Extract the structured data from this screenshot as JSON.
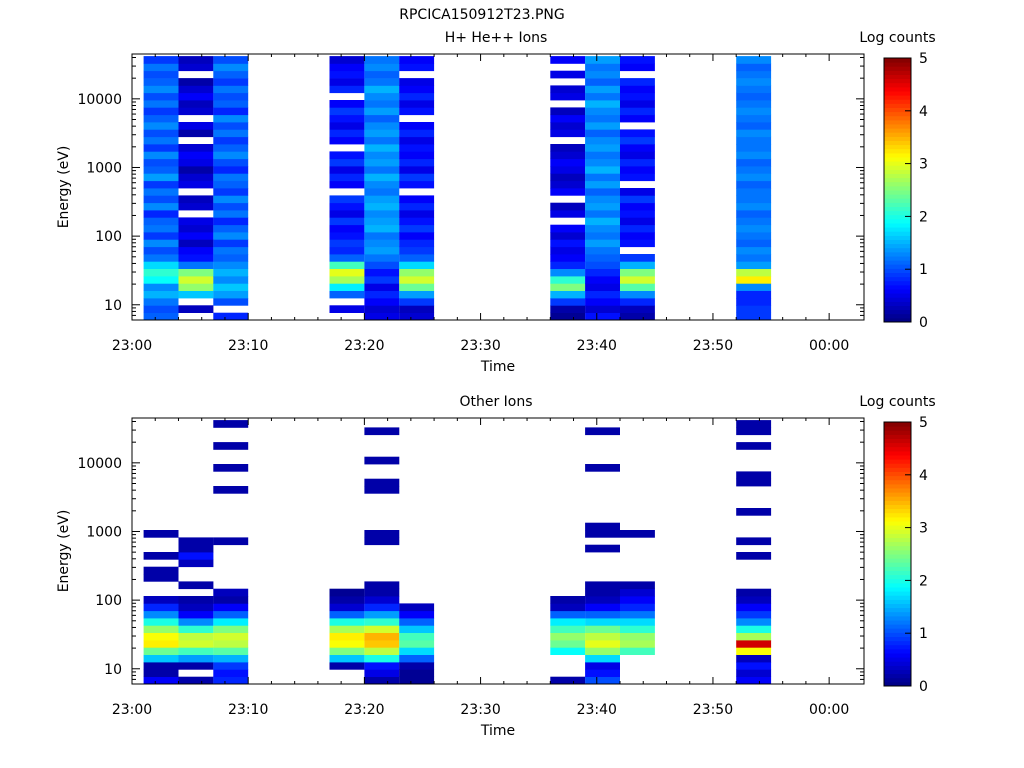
{
  "figure_title": "RPCICA150912T23.PNG",
  "chart_data": [
    {
      "type": "heatmap",
      "title": "H+ He++ Ions",
      "xlabel": "Time",
      "ylabel": "Energy (eV)",
      "yscale": "log",
      "ylim_eV": [
        6,
        45000
      ],
      "xlim_minutes_after_2300": [
        0,
        63
      ],
      "x_tick_labels": [
        "23:00",
        "23:10",
        "23:20",
        "23:30",
        "23:40",
        "23:50",
        "00:00"
      ],
      "y_tick_labels": [
        "10",
        "100",
        "1000",
        "10000"
      ],
      "colorbar_label": "Log counts",
      "colorbar_range": [
        0,
        5
      ],
      "colorbar_tick_labels": [
        "0",
        "1",
        "2",
        "3",
        "4",
        "5"
      ],
      "grid": false,
      "sweeps": [
        {
          "start": "23:01",
          "end": "23:04",
          "low_eV": 6,
          "high_eV": 42000,
          "levels": [
            1.1,
            1.0,
            1.2,
            1.5,
            1.3,
            1.9,
            2.1,
            1.7,
            1.2,
            1.0,
            1.3,
            0.9,
            1.2,
            1.1,
            0.8,
            1.3,
            1.0,
            1.2,
            0.9,
            1.4,
            1.1,
            1.0,
            1.3,
            0.9,
            1.2,
            1.0,
            1.3,
            1.1,
            0.9,
            1.2,
            1.0,
            1.3,
            1.1,
            1.0,
            1.2,
            0.9
          ]
        },
        {
          "start": "23:04",
          "end": "23:07",
          "low_eV": 6,
          "high_eV": 42000,
          "levels": [
            -1,
            0.3,
            -1,
            1.6,
            2.6,
            2.9,
            2.5,
            1.2,
            0.7,
            0.6,
            0.3,
            0.6,
            0.4,
            0.5,
            -1,
            0.4,
            0.3,
            -1,
            0.5,
            0.4,
            0.2,
            0.5,
            0.6,
            0.4,
            -1,
            0.2,
            0.5,
            -1,
            0.4,
            0.3,
            0.6,
            0.4,
            0.2,
            -1,
            0.4,
            0.3
          ]
        },
        {
          "start": "23:07",
          "end": "23:10",
          "low_eV": 6,
          "high_eV": 42000,
          "levels": [
            0.8,
            -1,
            1.0,
            1.4,
            1.6,
            1.3,
            1.5,
            1.3,
            1.1,
            1.2,
            0.9,
            1.3,
            1.1,
            0.8,
            1.2,
            1.0,
            1.3,
            0.9,
            1.1,
            1.2,
            0.8,
            1.0,
            1.3,
            1.1,
            0.9,
            1.2,
            1.0,
            1.3,
            0.8,
            1.1,
            1.0,
            1.2,
            0.9,
            1.1,
            1.3,
            1.0
          ]
        },
        {
          "start": "23:17",
          "end": "23:20",
          "low_eV": 6,
          "high_eV": 42000,
          "levels": [
            -1,
            0.5,
            -1,
            1.1,
            1.8,
            2.7,
            3.0,
            2.2,
            1.1,
            0.8,
            0.9,
            0.7,
            0.6,
            0.9,
            0.5,
            0.7,
            0.9,
            -1,
            0.6,
            0.8,
            0.5,
            0.9,
            0.7,
            -1,
            0.6,
            0.8,
            0.5,
            0.7,
            0.9,
            0.6,
            -1,
            0.8,
            0.5,
            0.7,
            0.6,
            0.4
          ]
        },
        {
          "start": "23:20",
          "end": "23:23",
          "low_eV": 6,
          "high_eV": 42000,
          "levels": [
            0.5,
            0.4,
            0.6,
            0.8,
            0.5,
            0.9,
            0.7,
            1.0,
            1.2,
            1.4,
            1.3,
            1.2,
            1.5,
            1.4,
            1.3,
            1.5,
            1.4,
            1.2,
            1.3,
            1.5,
            1.2,
            1.4,
            1.3,
            1.5,
            1.2,
            1.4,
            1.3,
            1.1,
            1.4,
            1.2,
            1.3,
            1.5,
            1.2,
            1.1,
            1.3,
            1.2
          ]
        },
        {
          "start": "23:23",
          "end": "23:26",
          "low_eV": 6,
          "high_eV": 42000,
          "levels": [
            0.4,
            0.3,
            0.9,
            1.4,
            2.4,
            2.9,
            2.6,
            1.7,
            1.1,
            0.9,
            0.8,
            0.6,
            0.9,
            0.7,
            0.5,
            0.8,
            0.6,
            -1,
            0.7,
            0.9,
            0.5,
            0.8,
            0.6,
            0.7,
            0.5,
            0.8,
            0.6,
            -1,
            0.7,
            0.5,
            0.8,
            0.6,
            0.5,
            -1,
            0.7,
            0.6
          ]
        },
        {
          "start": "23:36",
          "end": "23:39",
          "low_eV": 6,
          "high_eV": 42000,
          "levels": [
            0.1,
            0.2,
            0.9,
            1.5,
            2.5,
            2.1,
            1.3,
            0.8,
            0.6,
            0.5,
            0.7,
            0.4,
            0.6,
            -1,
            0.5,
            0.3,
            -1,
            0.6,
            0.4,
            0.3,
            0.5,
            0.6,
            0.4,
            0.3,
            -1,
            0.5,
            0.4,
            0.6,
            0.3,
            -1,
            0.5,
            0.4,
            -1,
            0.5,
            -1,
            0.6
          ]
        },
        {
          "start": "23:39",
          "end": "23:42",
          "low_eV": 6,
          "high_eV": 42000,
          "levels": [
            0.7,
            0.4,
            0.6,
            0.8,
            0.5,
            0.6,
            0.8,
            1.0,
            1.1,
            1.2,
            1.4,
            1.2,
            1.3,
            1.5,
            1.2,
            1.4,
            1.3,
            1.1,
            1.4,
            1.2,
            1.5,
            1.3,
            1.2,
            1.4,
            1.3,
            1.1,
            1.4,
            1.2,
            1.3,
            1.5,
            1.2,
            1.4,
            1.1,
            1.3,
            1.2,
            1.4
          ]
        },
        {
          "start": "23:42",
          "end": "23:45",
          "low_eV": 6,
          "high_eV": 42000,
          "levels": [
            0.2,
            0.3,
            0.8,
            1.3,
            2.3,
            2.9,
            2.5,
            1.5,
            0.9,
            -1,
            0.7,
            0.6,
            0.8,
            0.5,
            0.7,
            0.6,
            0.9,
            0.5,
            -1,
            0.7,
            0.6,
            0.8,
            0.5,
            0.6,
            0.9,
            0.7,
            -1,
            0.6,
            0.8,
            0.5,
            0.7,
            0.6,
            0.8,
            -1,
            0.6,
            0.7
          ]
        },
        {
          "start": "23:52",
          "end": "23:55",
          "low_eV": 6,
          "high_eV": 42000,
          "levels": [
            0.9,
            0.9,
            0.8,
            0.8,
            1.3,
            3.2,
            2.8,
            1.4,
            1.2,
            1.3,
            1.1,
            1.2,
            1.3,
            1.2,
            1.1,
            1.3,
            1.2,
            1.2,
            1.1,
            1.3,
            1.2,
            1.1,
            1.3,
            1.2,
            1.2,
            1.3,
            1.1,
            1.2,
            1.3,
            1.2,
            1.1,
            1.2,
            1.3,
            1.2,
            1.1,
            1.3
          ]
        }
      ]
    },
    {
      "type": "heatmap",
      "title": "Other Ions",
      "xlabel": "Time",
      "ylabel": "Energy (eV)",
      "yscale": "log",
      "ylim_eV": [
        6,
        45000
      ],
      "xlim_minutes_after_2300": [
        0,
        63
      ],
      "x_tick_labels": [
        "23:00",
        "23:10",
        "23:20",
        "23:30",
        "23:40",
        "23:50",
        "00:00"
      ],
      "y_tick_labels": [
        "10",
        "100",
        "1000",
        "10000"
      ],
      "colorbar_label": "Log counts",
      "colorbar_range": [
        0,
        5
      ],
      "colorbar_tick_labels": [
        "0",
        "1",
        "2",
        "3",
        "4",
        "5"
      ],
      "grid": false,
      "sweeps": [
        {
          "start": "23:01",
          "end": "23:04",
          "low_eV": 6,
          "high_eV": 42000,
          "levels": [
            0.6,
            0.2,
            0.2,
            1.6,
            2.4,
            3.2,
            3.1,
            2.6,
            2.0,
            1.3,
            0.8,
            0.3,
            -1,
            -1,
            0.2,
            0.2,
            -1,
            0.2,
            -1,
            -1,
            0.2,
            -1,
            -1,
            -1,
            -1,
            -1,
            -1,
            -1,
            -1,
            -1,
            -1,
            -1,
            -1,
            -1,
            -1,
            -1
          ]
        },
        {
          "start": "23:04",
          "end": "23:07",
          "low_eV": 6,
          "high_eV": 42000,
          "levels": [
            0.2,
            -1,
            0.2,
            1.4,
            2.2,
            2.9,
            2.8,
            2.1,
            1.3,
            0.6,
            0.3,
            0.2,
            -1,
            0.2,
            -1,
            -1,
            0.3,
            0.7,
            0.2,
            0.2,
            -1,
            -1,
            -1,
            -1,
            -1,
            -1,
            -1,
            -1,
            -1,
            -1,
            -1,
            -1,
            -1,
            -1,
            -1,
            -1
          ]
        },
        {
          "start": "23:07",
          "end": "23:10",
          "low_eV": 6,
          "high_eV": 42000,
          "levels": [
            0.8,
            0.7,
            0.9,
            1.5,
            2.3,
            2.8,
            2.9,
            2.5,
            1.8,
            1.1,
            0.6,
            0.2,
            0.3,
            -1,
            -1,
            -1,
            -1,
            -1,
            -1,
            0.2,
            -1,
            -1,
            -1,
            -1,
            -1,
            -1,
            0.2,
            -1,
            -1,
            0.2,
            -1,
            -1,
            0.2,
            -1,
            -1,
            0.2
          ]
        },
        {
          "start": "23:17",
          "end": "23:20",
          "low_eV": 6,
          "high_eV": 42000,
          "levels": [
            -1,
            -1,
            0.2,
            1.6,
            2.5,
            3.1,
            3.2,
            2.7,
            2.0,
            1.1,
            0.4,
            0.2,
            0.1,
            -1,
            -1,
            -1,
            -1,
            -1,
            -1,
            -1,
            -1,
            -1,
            -1,
            -1,
            -1,
            -1,
            -1,
            -1,
            -1,
            -1,
            -1,
            -1,
            -1,
            -1,
            -1,
            -1
          ]
        },
        {
          "start": "23:20",
          "end": "23:23",
          "low_eV": 6,
          "high_eV": 42000,
          "levels": [
            0.2,
            0.5,
            0.7,
            2.0,
            2.8,
            3.4,
            3.5,
            2.9,
            2.1,
            1.4,
            0.8,
            0.4,
            0.2,
            0.2,
            -1,
            -1,
            -1,
            -1,
            -1,
            0.2,
            0.2,
            -1,
            -1,
            -1,
            -1,
            -1,
            0.2,
            0.2,
            -1,
            -1,
            0.2,
            -1,
            -1,
            -1,
            0.2,
            -1
          ]
        },
        {
          "start": "23:23",
          "end": "23:26",
          "low_eV": 6,
          "high_eV": 42000,
          "levels": [
            0.1,
            0.1,
            0.2,
            1.1,
            1.7,
            2.3,
            2.2,
            1.6,
            1.1,
            0.6,
            0.3,
            -1,
            -1,
            -1,
            -1,
            -1,
            -1,
            -1,
            -1,
            -1,
            -1,
            -1,
            -1,
            -1,
            -1,
            -1,
            -1,
            -1,
            -1,
            -1,
            -1,
            -1,
            -1,
            -1,
            -1,
            -1
          ]
        },
        {
          "start": "23:36",
          "end": "23:39",
          "low_eV": 6,
          "high_eV": 42000,
          "levels": [
            0.2,
            -1,
            -1,
            -1,
            1.9,
            2.4,
            2.6,
            2.2,
            1.8,
            1.1,
            0.3,
            0.2,
            -1,
            -1,
            -1,
            -1,
            -1,
            -1,
            -1,
            -1,
            -1,
            -1,
            -1,
            -1,
            -1,
            -1,
            -1,
            -1,
            -1,
            -1,
            -1,
            -1,
            -1,
            -1,
            -1,
            -1
          ]
        },
        {
          "start": "23:39",
          "end": "23:42",
          "low_eV": 6,
          "high_eV": 42000,
          "levels": [
            1.0,
            0.7,
            0.5,
            1.7,
            2.6,
            3.0,
            2.8,
            2.4,
            1.7,
            1.1,
            0.6,
            0.3,
            0.2,
            0.2,
            -1,
            -1,
            -1,
            -1,
            0.2,
            -1,
            0.2,
            0.2,
            -1,
            -1,
            -1,
            -1,
            -1,
            -1,
            -1,
            0.2,
            -1,
            -1,
            -1,
            -1,
            0.2,
            -1
          ]
        },
        {
          "start": "23:42",
          "end": "23:45",
          "low_eV": 6,
          "high_eV": 42000,
          "levels": [
            -1,
            -1,
            -1,
            -1,
            2.2,
            2.7,
            2.6,
            2.1,
            1.7,
            1.2,
            0.8,
            0.6,
            0.4,
            0.2,
            -1,
            -1,
            -1,
            -1,
            -1,
            -1,
            0.2,
            -1,
            -1,
            -1,
            -1,
            -1,
            -1,
            -1,
            -1,
            -1,
            -1,
            -1,
            -1,
            -1,
            -1,
            -1
          ]
        },
        {
          "start": "23:52",
          "end": "23:55",
          "low_eV": 6,
          "high_eV": 42000,
          "levels": [
            0.6,
            0.4,
            0.7,
            0.3,
            3.1,
            4.6,
            2.7,
            2.0,
            1.3,
            0.9,
            0.6,
            0.3,
            0.2,
            -1,
            -1,
            -1,
            -1,
            0.2,
            -1,
            0.2,
            -1,
            -1,
            -1,
            0.2,
            -1,
            -1,
            -1,
            0.2,
            0.2,
            -1,
            -1,
            -1,
            0.2,
            -1,
            0.2,
            0.2
          ]
        }
      ]
    }
  ]
}
